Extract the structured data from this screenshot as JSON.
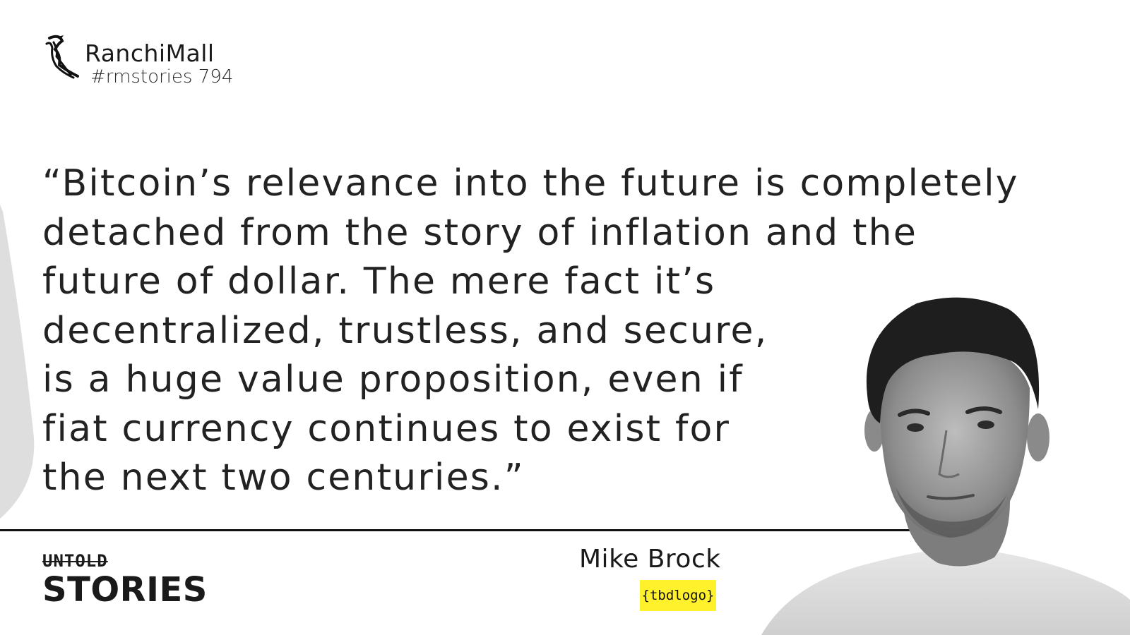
{
  "brand": {
    "name": "RanchiMall",
    "tag": "#rmstories 794"
  },
  "quote": {
    "lines": [
      "“Bitcoin’s relevance into the future is completely",
      "detached from the story of inflation and the",
      "future of dollar. The mere fact it’s",
      "decentralized, trustless, and secure,",
      "is a huge value proposition, even if",
      "fiat currency continues to exist for",
      "the next two centuries.”"
    ]
  },
  "footer": {
    "series_top": "UNTOLD",
    "series_bottom": "STORIES"
  },
  "speaker": {
    "name": "Mike Brock",
    "company_logo_text": "{tbdlogo}"
  },
  "colors": {
    "badge": "#fff22c",
    "text": "#1c1c1c",
    "accent_shape": "#dedede"
  }
}
